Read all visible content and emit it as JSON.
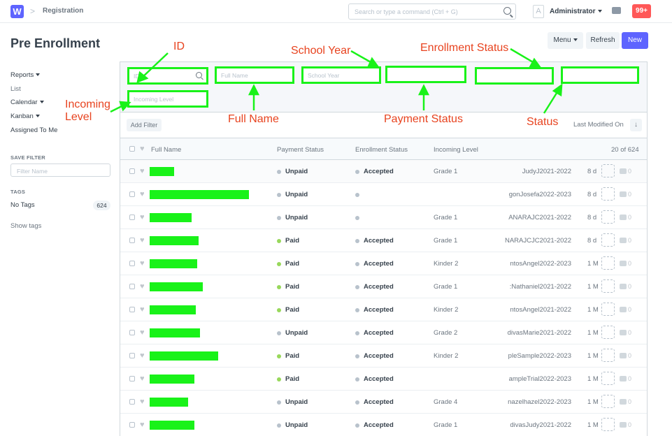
{
  "navbar": {
    "logo": "W",
    "breadcrumb": "Registration",
    "search_placeholder": "Search or type a command (Ctrl + G)",
    "avatar_initial": "A",
    "user": "Administrator",
    "notifications": "99+"
  },
  "page": {
    "title": "Pre Enrollment",
    "menu_label": "Menu",
    "refresh_label": "Refresh",
    "new_label": "New"
  },
  "sidebar": {
    "reports": "Reports",
    "list": "List",
    "calendar": "Calendar",
    "kanban": "Kanban",
    "assigned": "Assigned To Me",
    "save_filter_label": "SAVE FILTER",
    "filter_name_placeholder": "Filter Name",
    "tags_label": "TAGS",
    "no_tags": "No Tags",
    "tag_count": "624",
    "show_tags": "Show tags"
  },
  "filters": {
    "id_placeholder": "ID",
    "full_name_placeholder": "Full Name",
    "school_year_placeholder": "School Year",
    "incoming_level_placeholder": "Incoming Level",
    "add_filter": "Add Filter",
    "sort_label": "Last Modified On",
    "sort_icon": "arrow-down-icon"
  },
  "table": {
    "headers": {
      "full_name": "Full Name",
      "payment_status": "Payment Status",
      "enrollment_status": "Enrollment Status",
      "incoming_level": "Incoming Level",
      "count": "20 of 624"
    },
    "status_colors": {
      "paid": "#98d85b",
      "unpaid": "#b8c2cc",
      "highlight": "#19f219"
    },
    "rows": [
      {
        "payment": "Unpaid",
        "enrollment": "Accepted",
        "level": "Grade 1",
        "id": "JudyJ2021-2022",
        "age": "8 d",
        "comments": "0"
      },
      {
        "payment": "Unpaid",
        "enrollment": "",
        "level": "",
        "id": "gonJosefa2022-2023",
        "age": "8 d",
        "comments": "0"
      },
      {
        "payment": "Unpaid",
        "enrollment": "",
        "level": "Grade 1",
        "id": "ANARAJC2021-2022",
        "age": "8 d",
        "comments": "0"
      },
      {
        "payment": "Paid",
        "enrollment": "Accepted",
        "level": "Grade 1",
        "id": "NARAJCJC2021-2022",
        "age": "8 d",
        "comments": "0"
      },
      {
        "payment": "Paid",
        "enrollment": "Accepted",
        "level": "Kinder 2",
        "id": "ntosAngel2022-2023",
        "age": "1 M",
        "comments": "0"
      },
      {
        "payment": "Paid",
        "enrollment": "Accepted",
        "level": "Grade 1",
        "id": ":Nathaniel2021-2022",
        "age": "1 M",
        "comments": "0"
      },
      {
        "payment": "Paid",
        "enrollment": "Accepted",
        "level": "Kinder 2",
        "id": "ntosAngel2021-2022",
        "age": "1 M",
        "comments": "0"
      },
      {
        "payment": "Unpaid",
        "enrollment": "Accepted",
        "level": "Grade 2",
        "id": "divasMarie2021-2022",
        "age": "1 M",
        "comments": "0"
      },
      {
        "payment": "Paid",
        "enrollment": "Accepted",
        "level": "Kinder 2",
        "id": "pleSample2022-2023",
        "age": "1 M",
        "comments": "0"
      },
      {
        "payment": "Paid",
        "enrollment": "Accepted",
        "level": "",
        "id": "ampleTrial2022-2023",
        "age": "1 M",
        "comments": "0"
      },
      {
        "payment": "Unpaid",
        "enrollment": "Accepted",
        "level": "Grade 4",
        "id": "nazelhazel2022-2023",
        "age": "1 M",
        "comments": "0"
      },
      {
        "payment": "Unpaid",
        "enrollment": "Accepted",
        "level": "Grade 1",
        "id": "divasJudy2021-2022",
        "age": "1 M",
        "comments": "0"
      }
    ]
  },
  "annotations": {
    "id": "ID",
    "school_year": "School Year",
    "enrollment_status": "Enrollment Status",
    "incoming_level": "Incoming\nLevel",
    "full_name": "Full Name",
    "payment_status": "Payment Status",
    "status": "Status",
    "color": "#e8431f",
    "arrow_color": "#19f219"
  }
}
